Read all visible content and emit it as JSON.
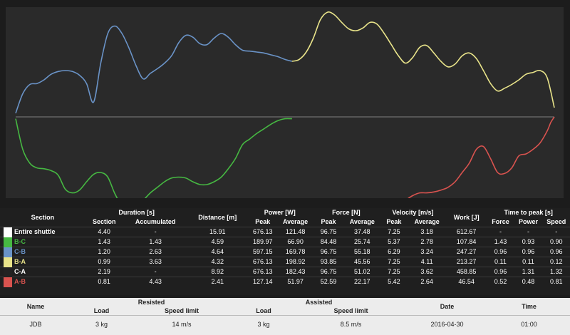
{
  "colors": {
    "plot_bg": "#2a2a2a",
    "page_bg": "#1c1c1c",
    "entire_shuttle": "#ffffff",
    "B-C": "#46b842",
    "C-B": "#6a93c7",
    "B-A": "#e9e48a",
    "C-A": "#222222",
    "A-B": "#d9534f",
    "axis_line": "#808080"
  },
  "chart_data": {
    "type": "line",
    "title": "",
    "xlabel": "",
    "ylabel": "",
    "grid": false,
    "baseline": 0,
    "series": [
      {
        "name": "B-C",
        "color": "#46b842",
        "x": [
          0,
          10,
          20,
          30,
          40,
          50,
          60,
          70,
          80,
          90,
          100,
          110,
          120,
          130,
          140,
          150,
          160,
          170,
          180,
          190,
          200,
          210,
          220,
          230,
          240,
          250,
          260,
          270,
          280,
          290,
          300,
          310,
          320,
          330,
          340,
          350,
          360,
          370,
          380,
          390
        ],
        "y": [
          -0.02,
          -0.35,
          -0.5,
          -0.55,
          -0.56,
          -0.58,
          -0.63,
          -0.78,
          -0.82,
          -0.79,
          -0.7,
          -0.62,
          -0.6,
          -0.65,
          -0.83,
          -0.96,
          -1.0,
          -0.97,
          -0.9,
          -0.82,
          -0.76,
          -0.7,
          -0.66,
          -0.65,
          -0.66,
          -0.7,
          -0.73,
          -0.73,
          -0.7,
          -0.65,
          -0.56,
          -0.45,
          -0.3,
          -0.24,
          -0.18,
          -0.13,
          -0.08,
          -0.04,
          -0.02,
          -0.02
        ]
      },
      {
        "name": "C-B",
        "color": "#6a93c7",
        "x": [
          0,
          10,
          20,
          30,
          40,
          50,
          60,
          70,
          80,
          90,
          100,
          110,
          120,
          130,
          140,
          150,
          160,
          170,
          180,
          190,
          200,
          210,
          220,
          230,
          240,
          250,
          260,
          270,
          280,
          290,
          300,
          310,
          320,
          330,
          340,
          350,
          360,
          370,
          380,
          390
        ],
        "y": [
          0.04,
          0.25,
          0.35,
          0.36,
          0.4,
          0.46,
          0.49,
          0.5,
          0.49,
          0.45,
          0.36,
          0.16,
          0.58,
          0.9,
          0.98,
          0.9,
          0.74,
          0.55,
          0.41,
          0.47,
          0.52,
          0.58,
          0.66,
          0.8,
          0.88,
          0.86,
          0.79,
          0.78,
          0.85,
          0.9,
          0.86,
          0.78,
          0.72,
          0.71,
          0.7,
          0.69,
          0.67,
          0.65,
          0.62,
          0.6
        ]
      },
      {
        "name": "B-A",
        "color": "#e9e48a",
        "x": [
          390,
          400,
          410,
          420,
          430,
          440,
          450,
          460,
          470,
          480,
          490,
          500,
          510,
          520,
          530,
          540,
          550,
          560,
          570,
          580,
          590,
          600,
          610,
          620,
          630,
          640,
          650,
          660,
          670,
          680,
          690,
          700,
          710,
          720,
          730,
          740,
          750,
          760
        ],
        "y": [
          0.6,
          0.62,
          0.7,
          0.85,
          1.05,
          1.13,
          1.1,
          1.02,
          0.95,
          0.93,
          0.96,
          1.02,
          1.0,
          0.9,
          0.78,
          0.66,
          0.58,
          0.64,
          0.75,
          0.77,
          0.69,
          0.6,
          0.54,
          0.57,
          0.66,
          0.69,
          0.63,
          0.5,
          0.36,
          0.28,
          0.31,
          0.35,
          0.4,
          0.46,
          0.48,
          0.5,
          0.42,
          0.1
        ]
      },
      {
        "name": "A-B",
        "color": "#d9534f",
        "x": [
          550,
          560,
          570,
          580,
          590,
          600,
          610,
          620,
          630,
          640,
          650,
          660,
          670,
          680,
          690,
          700,
          710,
          720,
          730,
          740,
          750,
          755,
          760
        ],
        "y": [
          -0.9,
          -0.85,
          -0.82,
          -0.82,
          -0.81,
          -0.79,
          -0.76,
          -0.7,
          -0.6,
          -0.5,
          -0.35,
          -0.32,
          -0.45,
          -0.6,
          -0.61,
          -0.55,
          -0.42,
          -0.4,
          -0.35,
          -0.28,
          -0.15,
          -0.06,
          0.0
        ]
      }
    ]
  },
  "results": {
    "headers": {
      "section": "Section",
      "duration": "Duration [s]",
      "distance": "Distance [m]",
      "power": "Power [W]",
      "force": "Force [N]",
      "velocity": "Velocity [m/s]",
      "work": "Work [J]",
      "time_to_peak": "Time to peak [s]",
      "sub_section": "Section",
      "sub_accumulated": "Accumulated",
      "sub_peak": "Peak",
      "sub_average": "Average",
      "sub_force": "Force",
      "sub_power": "Power",
      "sub_speed": "Speed"
    },
    "rows": [
      {
        "section": "Entire shuttle",
        "dur_sec": "4.40",
        "dur_acc": "-",
        "dist": "15.91",
        "p_peak": "676.13",
        "p_avg": "121.48",
        "f_peak": "96.75",
        "f_avg": "37.48",
        "v_peak": "7.25",
        "v_avg": "3.18",
        "work": "612.67",
        "t_force": "-",
        "t_power": "-",
        "t_speed": "-"
      },
      {
        "section": "B-C",
        "dur_sec": "1.43",
        "dur_acc": "1.43",
        "dist": "4.59",
        "p_peak": "189.97",
        "p_avg": "66.90",
        "f_peak": "84.48",
        "f_avg": "25.74",
        "v_peak": "5.37",
        "v_avg": "2.78",
        "work": "107.84",
        "t_force": "1.43",
        "t_power": "0.93",
        "t_speed": "0.90"
      },
      {
        "section": "C-B",
        "dur_sec": "1.20",
        "dur_acc": "2.63",
        "dist": "4.64",
        "p_peak": "597.15",
        "p_avg": "169.78",
        "f_peak": "96.75",
        "f_avg": "55.18",
        "v_peak": "6.29",
        "v_avg": "3.24",
        "work": "247.27",
        "t_force": "0.96",
        "t_power": "0.96",
        "t_speed": "0.96"
      },
      {
        "section": "B-A",
        "dur_sec": "0.99",
        "dur_acc": "3.63",
        "dist": "4.32",
        "p_peak": "676.13",
        "p_avg": "198.92",
        "f_peak": "93.85",
        "f_avg": "45.56",
        "v_peak": "7.25",
        "v_avg": "4.11",
        "work": "213.27",
        "t_force": "0.11",
        "t_power": "0.11",
        "t_speed": "0.12"
      },
      {
        "section": "C-A",
        "dur_sec": "2.19",
        "dur_acc": "-",
        "dist": "8.92",
        "p_peak": "676.13",
        "p_avg": "182.43",
        "f_peak": "96.75",
        "f_avg": "51.02",
        "v_peak": "7.25",
        "v_avg": "3.62",
        "work": "458.85",
        "t_force": "0.96",
        "t_power": "1.31",
        "t_speed": "1.32"
      },
      {
        "section": "A-B",
        "dur_sec": "0.81",
        "dur_acc": "4.43",
        "dist": "2.41",
        "p_peak": "127.14",
        "p_avg": "51.97",
        "f_peak": "52.59",
        "f_avg": "22.17",
        "v_peak": "5.42",
        "v_avg": "2.64",
        "work": "46.54",
        "t_force": "0.52",
        "t_power": "0.48",
        "t_speed": "0.81"
      }
    ]
  },
  "summary": {
    "headers": {
      "name": "Name",
      "resisted": "Resisted",
      "assisted": "Assisted",
      "load": "Load",
      "speed_limit": "Speed limit",
      "date": "Date",
      "time": "Time"
    },
    "row": {
      "name": "JDB",
      "resisted_load": "3 kg",
      "resisted_speed": "14 m/s",
      "assisted_load": "3 kg",
      "assisted_speed": "8.5 m/s",
      "date": "2016-04-30",
      "time": "01:00"
    }
  }
}
